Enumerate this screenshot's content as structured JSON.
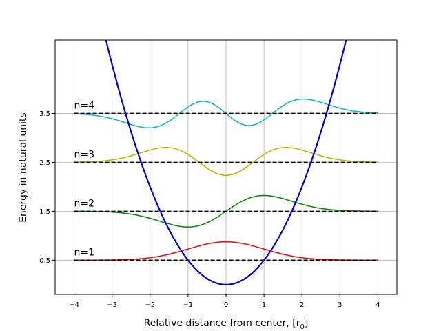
{
  "chart_data": {
    "type": "line",
    "title": "",
    "xlabel_main": "Relative distance from center, [r",
    "xlabel_sub": "0",
    "xlabel_close": "]",
    "ylabel": "Energy in natural units",
    "xlim": [
      -4.5,
      4.5
    ],
    "ylim": [
      -0.2,
      5.0
    ],
    "grid": true,
    "xticks": [
      -4,
      -3,
      -2,
      -1,
      0,
      1,
      2,
      3,
      4
    ],
    "xtick_labels": [
      "−4",
      "−3",
      "−2",
      "−1",
      "0",
      "1",
      "2",
      "3",
      "4"
    ],
    "yticks": [
      0.5,
      1.5,
      2.5,
      3.5
    ],
    "ytick_labels": [
      "0.5",
      "1.5",
      "2.5",
      "3.5"
    ],
    "potential": {
      "formula": "x^2/2",
      "x_range": [
        -4,
        4
      ],
      "color": "#0000dd"
    },
    "levels": [
      {
        "n": 1,
        "label": "n=1",
        "energy": 0.5,
        "color": "#ee1111",
        "wavefunction": "psi_0 / 2 + E"
      },
      {
        "n": 2,
        "label": "n=2",
        "energy": 1.5,
        "color": "#118811",
        "wavefunction": "psi_1 / 2 + E"
      },
      {
        "n": 3,
        "label": "n=3",
        "energy": 2.5,
        "color": "#bbbb00",
        "wavefunction": "psi_2 / 2 + E"
      },
      {
        "n": 4,
        "label": "n=4",
        "energy": 3.5,
        "color": "#11bbbb",
        "wavefunction": "psi_3 / 2 + E"
      }
    ],
    "level_line": {
      "x_range": [
        -4,
        4
      ],
      "style": "dashed",
      "color": "#000000"
    }
  }
}
